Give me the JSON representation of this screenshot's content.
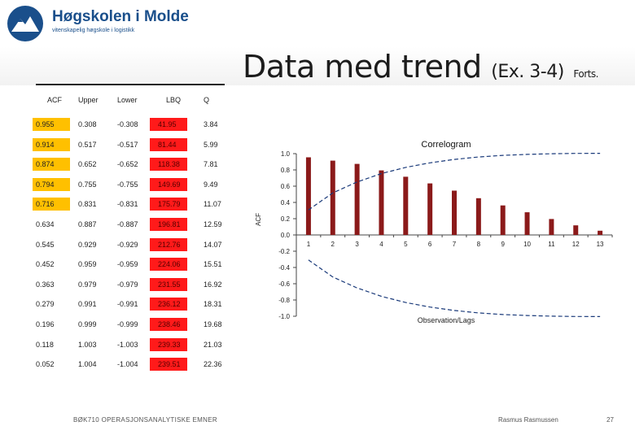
{
  "header": {
    "org_name": "Høgskolen i Molde",
    "org_tagline": "vitenskapelig høgskole i logistikk",
    "title_main": "Data med trend",
    "title_sub": "(Ex. 3-4)",
    "title_sub2": "Forts.",
    "logo_icon": "mountain-logo-icon",
    "brand_color": "#1a4f8b"
  },
  "table": {
    "headers": [
      "ACF",
      "Upper",
      "Lower",
      "LBQ",
      "Q"
    ],
    "rows": [
      [
        "0.955",
        "0.308",
        "-0.308",
        "41.95",
        "3.84"
      ],
      [
        "0.914",
        "0.517",
        "-0.517",
        "81.44",
        "5.99"
      ],
      [
        "0.874",
        "0.652",
        "-0.652",
        "118.38",
        "7.81"
      ],
      [
        "0.794",
        "0.755",
        "-0.755",
        "149.69",
        "9.49"
      ],
      [
        "0.716",
        "0.831",
        "-0.831",
        "175.79",
        "11.07"
      ],
      [
        "0.634",
        "0.887",
        "-0.887",
        "196.81",
        "12.59"
      ],
      [
        "0.545",
        "0.929",
        "-0.929",
        "212.76",
        "14.07"
      ],
      [
        "0.452",
        "0.959",
        "-0.959",
        "224.06",
        "15.51"
      ],
      [
        "0.363",
        "0.979",
        "-0.979",
        "231.55",
        "16.92"
      ],
      [
        "0.279",
        "0.991",
        "-0.991",
        "236.12",
        "18.31"
      ],
      [
        "0.196",
        "0.999",
        "-0.999",
        "238.46",
        "19.68"
      ],
      [
        "0.118",
        "1.003",
        "-1.003",
        "239.33",
        "21.03"
      ],
      [
        "0.052",
        "1.004",
        "-1.004",
        "239.51",
        "22.36"
      ]
    ],
    "acf_highlight_color": "#ffc000",
    "lbq_highlight_color": "#ff1a1a"
  },
  "chart_data": {
    "type": "bar",
    "title": "Correlogram",
    "xlabel": "Observation/Lags",
    "ylabel": "ACF",
    "categories": [
      "1",
      "2",
      "3",
      "4",
      "5",
      "6",
      "7",
      "8",
      "9",
      "10",
      "11",
      "12",
      "13"
    ],
    "values": [
      0.955,
      0.914,
      0.874,
      0.794,
      0.716,
      0.634,
      0.545,
      0.452,
      0.363,
      0.279,
      0.196,
      0.118,
      0.052
    ],
    "upper": [
      0.308,
      0.517,
      0.652,
      0.755,
      0.831,
      0.887,
      0.929,
      0.959,
      0.979,
      0.991,
      0.999,
      1.003,
      1.004
    ],
    "lower": [
      -0.308,
      -0.517,
      -0.652,
      -0.755,
      -0.831,
      -0.887,
      -0.929,
      -0.959,
      -0.979,
      -0.991,
      -0.999,
      -1.003,
      -1.004
    ],
    "ylim": [
      -1.0,
      1.0
    ],
    "yticks": [
      "1.0",
      "0.8",
      "0.6",
      "0.4",
      "0.2",
      "0.0",
      "-0.2",
      "-0.4",
      "-0.6",
      "-0.8",
      "-1.0"
    ],
    "ytick_values": [
      1.0,
      0.8,
      0.6,
      0.4,
      0.2,
      0.0,
      -0.2,
      -0.4,
      -0.6,
      -0.8,
      -1.0
    ],
    "bar_color": "#8b1a1a",
    "band_color": "#1a3a7a",
    "grid": false
  },
  "footer": {
    "course": "BØK710 OPERASJONSANALYTISKE EMNER",
    "author": "Rasmus Rasmussen",
    "page": "27"
  }
}
